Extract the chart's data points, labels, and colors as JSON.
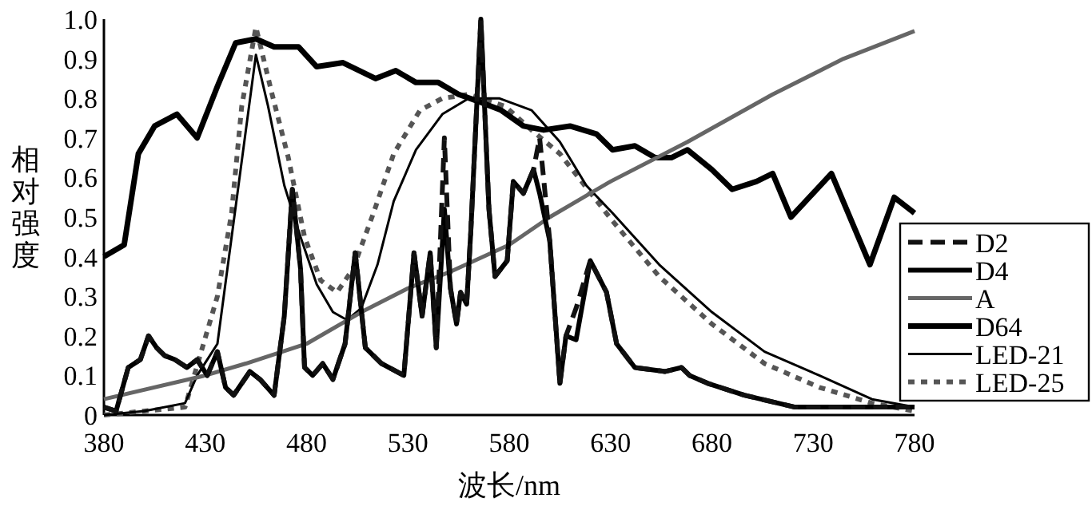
{
  "chart_data": {
    "type": "line",
    "xlabel": "波长/nm",
    "ylabel": "相对强度",
    "xlim": [
      380,
      780
    ],
    "ylim": [
      0,
      1
    ],
    "xticks": [
      380,
      430,
      480,
      530,
      580,
      630,
      680,
      730,
      780
    ],
    "yticks": [
      0,
      0.1,
      0.2,
      0.3,
      0.4,
      0.5,
      0.6,
      0.7,
      0.8,
      0.9,
      {
        "value": 1,
        "label": "1.0"
      }
    ],
    "grid": false,
    "legend": "right",
    "marker": "none",
    "series": [
      {
        "name": "D2",
        "color": "#111111",
        "line_style": "dashed",
        "x": [
          380,
          386,
          392,
          398,
          402,
          406,
          410,
          415,
          421,
          426,
          431,
          436,
          440,
          444,
          452,
          457,
          464,
          469,
          473,
          477,
          479,
          483,
          488,
          493,
          499,
          504,
          509,
          517,
          528,
          533,
          537,
          541,
          544,
          548,
          551,
          554,
          556,
          559,
          561,
          566,
          570,
          573,
          579,
          582,
          587,
          592,
          595,
          600,
          605,
          608,
          613,
          620,
          628,
          633,
          642,
          657,
          665,
          669,
          678,
          696,
          721,
          747,
          780
        ],
        "values": [
          0.02,
          0.01,
          0.12,
          0.14,
          0.2,
          0.17,
          0.15,
          0.14,
          0.12,
          0.14,
          0.1,
          0.16,
          0.07,
          0.05,
          0.11,
          0.09,
          0.05,
          0.25,
          0.57,
          0.37,
          0.12,
          0.1,
          0.13,
          0.09,
          0.18,
          0.41,
          0.17,
          0.13,
          0.1,
          0.41,
          0.25,
          0.41,
          0.17,
          0.7,
          0.32,
          0.23,
          0.31,
          0.28,
          0.46,
          1.0,
          0.52,
          0.35,
          0.39,
          0.59,
          0.56,
          0.62,
          0.7,
          0.44,
          0.08,
          0.2,
          0.27,
          0.39,
          0.31,
          0.18,
          0.12,
          0.11,
          0.12,
          0.1,
          0.08,
          0.05,
          0.02,
          0.02,
          0.02
        ]
      },
      {
        "name": "D4",
        "color": "#000000",
        "line_style": "solid",
        "x": [
          380,
          386,
          392,
          398,
          402,
          406,
          410,
          415,
          421,
          426,
          431,
          436,
          440,
          444,
          452,
          457,
          464,
          469,
          473,
          477,
          479,
          483,
          488,
          493,
          499,
          504,
          509,
          517,
          528,
          533,
          537,
          541,
          544,
          548,
          551,
          554,
          556,
          559,
          561,
          566,
          570,
          573,
          579,
          582,
          587,
          592,
          595,
          600,
          605,
          608,
          613,
          620,
          628,
          633,
          642,
          657,
          665,
          669,
          678,
          696,
          721,
          747,
          780
        ],
        "values": [
          0.02,
          0.01,
          0.12,
          0.14,
          0.2,
          0.17,
          0.15,
          0.14,
          0.12,
          0.14,
          0.1,
          0.16,
          0.07,
          0.05,
          0.11,
          0.09,
          0.05,
          0.25,
          0.57,
          0.37,
          0.12,
          0.1,
          0.13,
          0.09,
          0.18,
          0.41,
          0.17,
          0.13,
          0.1,
          0.41,
          0.25,
          0.41,
          0.17,
          0.52,
          0.32,
          0.23,
          0.31,
          0.28,
          0.46,
          1.0,
          0.52,
          0.35,
          0.39,
          0.59,
          0.56,
          0.62,
          0.56,
          0.44,
          0.08,
          0.2,
          0.19,
          0.39,
          0.31,
          0.18,
          0.12,
          0.11,
          0.12,
          0.1,
          0.08,
          0.05,
          0.02,
          0.02,
          0.02
        ]
      },
      {
        "name": "A",
        "color": "#666666",
        "line_style": "solid",
        "x": [
          380,
          430,
          450,
          480,
          507,
          530,
          550,
          580,
          600,
          630,
          668,
          710,
          745,
          780
        ],
        "values": [
          0.04,
          0.1,
          0.13,
          0.18,
          0.26,
          0.32,
          0.36,
          0.43,
          0.5,
          0.59,
          0.69,
          0.81,
          0.9,
          0.97
        ]
      },
      {
        "name": "D64",
        "color": "#000000",
        "line_style": "solid",
        "x": [
          380,
          390,
          397,
          405,
          416,
          426,
          436,
          445,
          455,
          464,
          476,
          485,
          498,
          514,
          524,
          534,
          545,
          555,
          566,
          576,
          587,
          597,
          610,
          623,
          631,
          642,
          652,
          660,
          668,
          680,
          690,
          702,
          710,
          719,
          739,
          758,
          770,
          780
        ],
        "values": [
          0.4,
          0.43,
          0.66,
          0.73,
          0.76,
          0.7,
          0.83,
          0.94,
          0.95,
          0.93,
          0.93,
          0.88,
          0.89,
          0.85,
          0.87,
          0.84,
          0.84,
          0.81,
          0.79,
          0.77,
          0.73,
          0.72,
          0.73,
          0.71,
          0.67,
          0.68,
          0.65,
          0.65,
          0.67,
          0.62,
          0.57,
          0.59,
          0.61,
          0.5,
          0.61,
          0.38,
          0.55,
          0.51
        ]
      },
      {
        "name": "LED-21",
        "color": "#000000",
        "line_style": "solid",
        "x": [
          380,
          400,
          420,
          426,
          436,
          455,
          461,
          469,
          477,
          485,
          493,
          500,
          507,
          515,
          523,
          534,
          547,
          560,
          575,
          591,
          605,
          618,
          631,
          654,
          680,
          706,
          733,
          759,
          780
        ],
        "values": [
          0,
          0.01,
          0.03,
          0.1,
          0.18,
          0.91,
          0.78,
          0.58,
          0.45,
          0.33,
          0.26,
          0.24,
          0.27,
          0.38,
          0.54,
          0.67,
          0.76,
          0.8,
          0.8,
          0.77,
          0.69,
          0.58,
          0.51,
          0.38,
          0.26,
          0.16,
          0.1,
          0.04,
          0.02
        ]
      },
      {
        "name": "LED-25",
        "color": "#555555",
        "line_style": "dotted",
        "x": [
          380,
          420,
          436,
          443,
          448,
          455,
          463,
          471,
          479,
          487,
          495,
          503,
          513,
          523,
          536,
          547,
          560,
          578,
          591,
          605,
          631,
          654,
          680,
          706,
          733,
          759,
          780
        ],
        "values": [
          0,
          0.02,
          0.3,
          0.51,
          0.78,
          0.98,
          0.81,
          0.65,
          0.45,
          0.34,
          0.31,
          0.37,
          0.51,
          0.66,
          0.77,
          0.8,
          0.81,
          0.78,
          0.72,
          0.66,
          0.49,
          0.35,
          0.23,
          0.13,
          0.07,
          0.03,
          0.01
        ]
      }
    ]
  }
}
